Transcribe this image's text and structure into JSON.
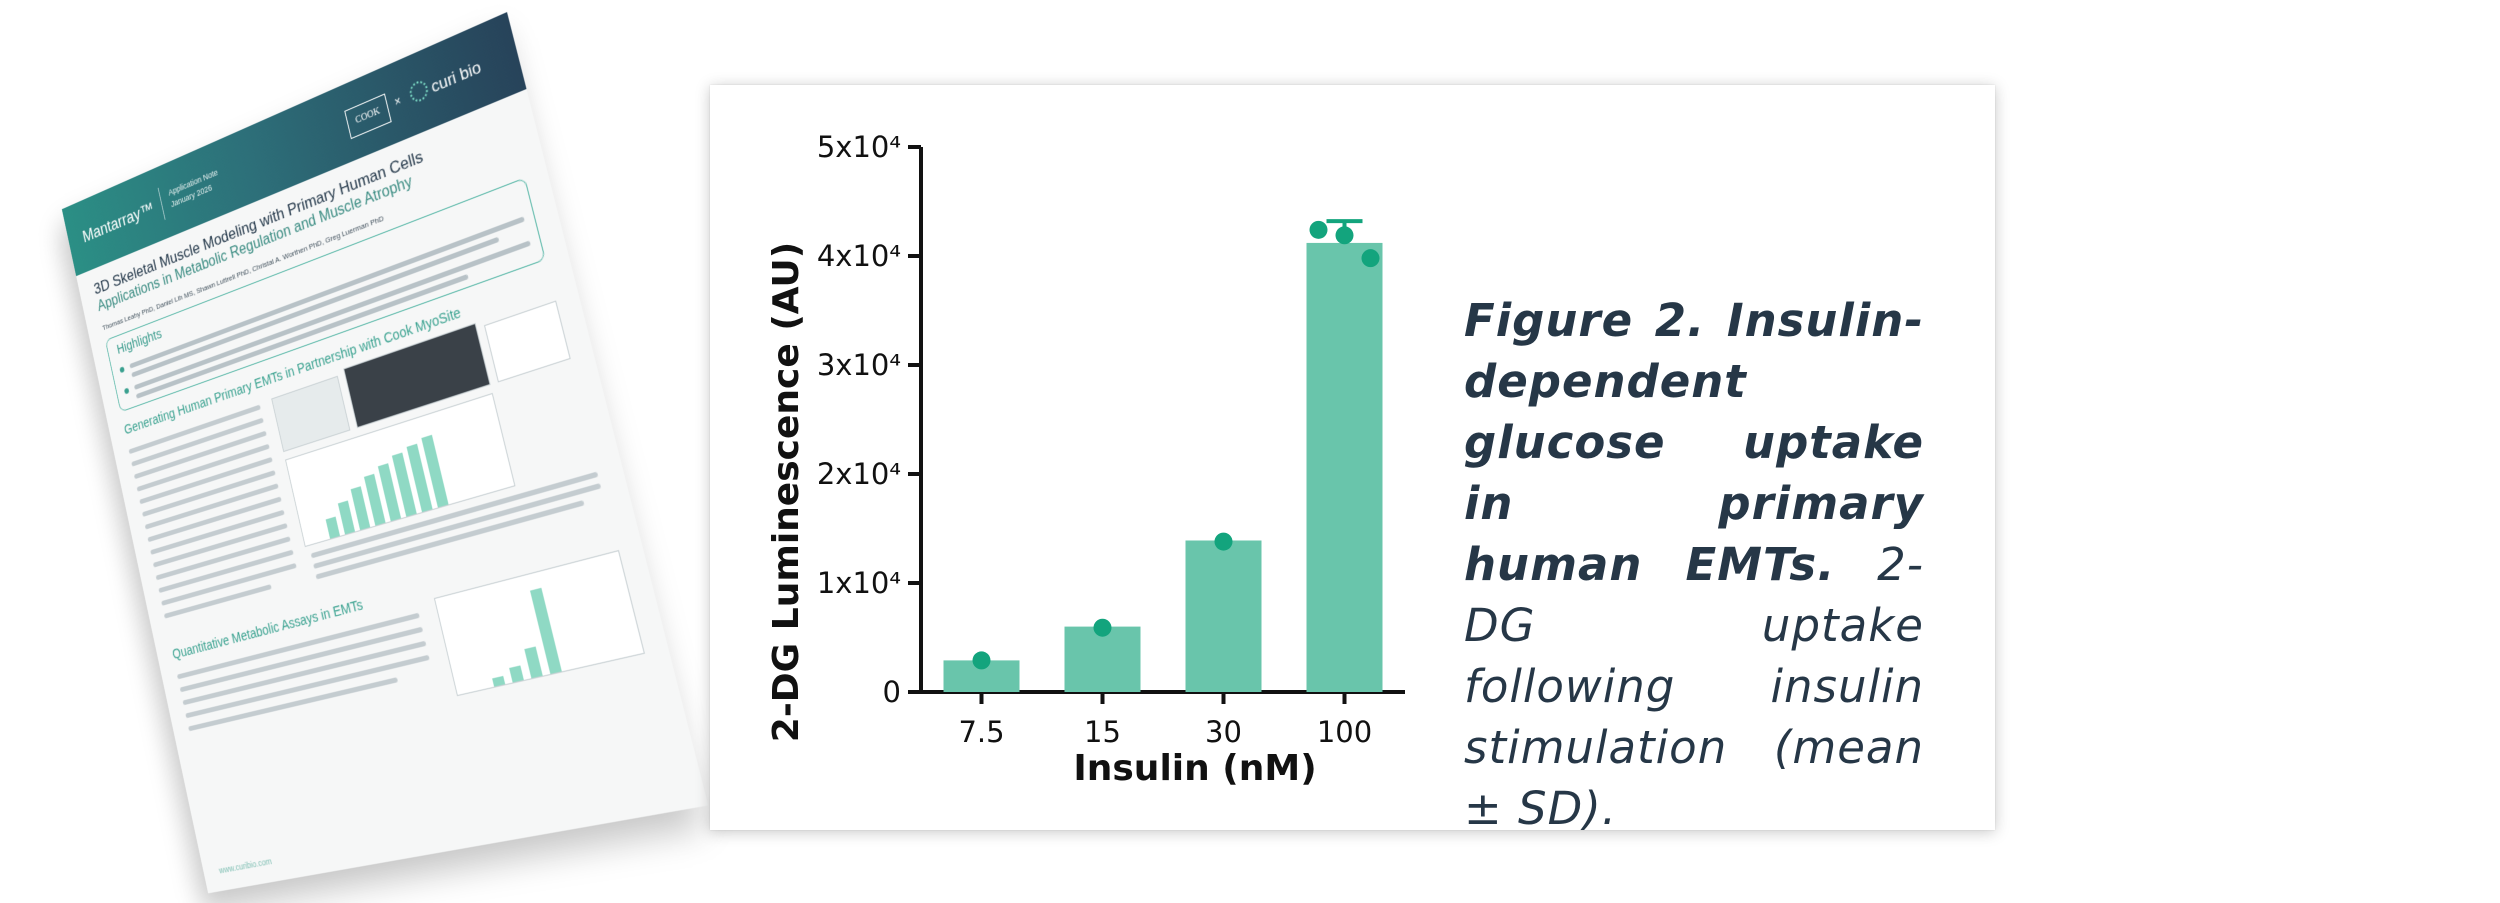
{
  "document": {
    "brand": "Mantarray™",
    "note": "Application Note\nJanuary 2026",
    "partner_logo": "COOK",
    "logo_x": "×",
    "curi_logo": "curi bio",
    "title": "3D Skeletal Muscle Modeling with Primary Human Cells",
    "subtitle": "Applications in Metabolic Regulation and Muscle Atrophy",
    "authors": "Thomas Leahy PhD, Daniel Lih MS, Shawn Luttrell PhD, Christal A. Worthen PhD, Greg Luerman PhD",
    "highlights_title": "Highlights",
    "section1_title": "Generating Human Primary EMTs in Partnership with Cook MyoSite",
    "section2_title": "Quantitative Metabolic Assays in EMTs",
    "footer": "www.curibio.com"
  },
  "chart_data": {
    "type": "bar",
    "categories": [
      "7.5",
      "15",
      "30",
      "100"
    ],
    "values": [
      2900,
      6000,
      13900,
      41200
    ],
    "error": [
      0,
      0,
      0,
      2000
    ],
    "points": [
      [
        2900
      ],
      [
        5900
      ],
      [
        13800
      ],
      [
        42400,
        41900,
        39800
      ]
    ],
    "xlabel": "Insulin (nM)",
    "ylabel": "2-DG Luminescence (AU)",
    "ylim": [
      0,
      50000
    ],
    "yticks": [
      0,
      10000,
      20000,
      30000,
      40000,
      50000
    ],
    "ytick_labels": [
      "0",
      "1x10⁴",
      "2x10⁴",
      "3x10⁴",
      "4x10⁴",
      "5x10⁴"
    ],
    "bar_color": "#69c5ab",
    "point_color": "#13a47d",
    "grid": false,
    "legend": "none"
  },
  "caption": {
    "bold": "Figure 2. Insulin-dependent glucose uptake in primary human EMTs.",
    "italic": "2-DG uptake following insulin stimulation (mean ± SD)."
  }
}
